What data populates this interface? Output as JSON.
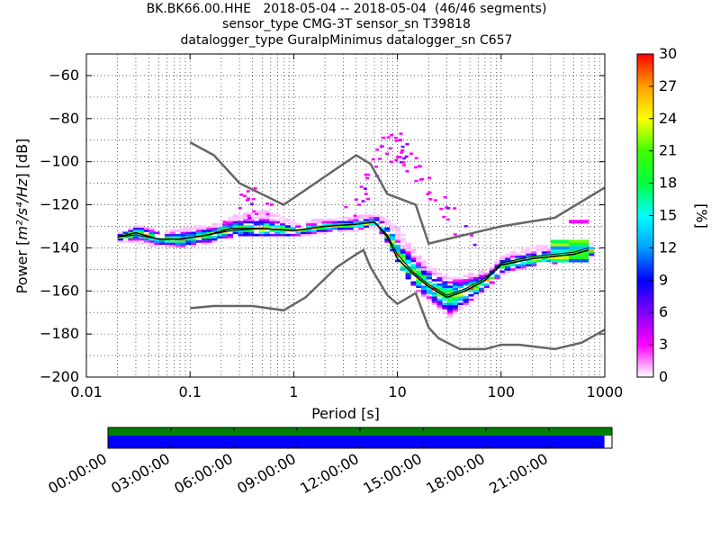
{
  "title_lines": [
    "BK.BK66.00.HHE   2018-05-04 -- 2018-05-04  (46/46 segments)",
    "sensor_type CMG-3T sensor_sn T39818",
    "datalogger_type GuralpMinimus datalogger_sn C657"
  ],
  "chart_data": {
    "type": "heatmap",
    "xlabel": "Period [s]",
    "ylabel": "Power [m²/s⁴/Hz] [dB]",
    "ylabel_parts": {
      "prefix": "Power [",
      "expr": "m²/s⁴/Hz",
      "suffix": "] [dB]"
    },
    "xscale": "log",
    "xlim": [
      0.01,
      1000
    ],
    "ylim": [
      -200,
      -50
    ],
    "x_tick_labels": [
      "0.01",
      "0.1",
      "1",
      "10",
      "100",
      "1000"
    ],
    "y_tick_labels": [
      "-60",
      "-80",
      "-100",
      "-120",
      "-140",
      "-160",
      "-180",
      "-200"
    ],
    "grid": "dotted",
    "colorbar": {
      "label": "[%]",
      "min": 0,
      "max": 30,
      "tick_labels": [
        "0",
        "3",
        "6",
        "9",
        "12",
        "15",
        "18",
        "21",
        "24",
        "27",
        "30"
      ],
      "colors": [
        "#ffffff",
        "#ff00ff",
        "#8000ff",
        "#0000ff",
        "#00a0ff",
        "#00ffff",
        "#00ff40",
        "#40ff00",
        "#ffff00",
        "#ffa000",
        "#ff0000"
      ]
    },
    "noise_model_high": [
      [
        0.1,
        -91
      ],
      [
        0.17,
        -97
      ],
      [
        0.3,
        -110
      ],
      [
        0.8,
        -120
      ],
      [
        4,
        -97
      ],
      [
        5.5,
        -101
      ],
      [
        8,
        -115
      ],
      [
        15,
        -120
      ],
      [
        20,
        -138
      ],
      [
        100,
        -130
      ],
      [
        330,
        -126
      ],
      [
        1000,
        -112
      ]
    ],
    "noise_model_low": [
      [
        0.1,
        -168
      ],
      [
        0.17,
        -167
      ],
      [
        0.4,
        -167
      ],
      [
        0.8,
        -169
      ],
      [
        1.3,
        -163
      ],
      [
        2.6,
        -149
      ],
      [
        4,
        -143
      ],
      [
        4.7,
        -141
      ],
      [
        5.5,
        -149
      ],
      [
        8,
        -162
      ],
      [
        10,
        -166
      ],
      [
        15,
        -161
      ],
      [
        20,
        -177
      ],
      [
        25,
        -182
      ],
      [
        40,
        -187
      ],
      [
        70,
        -187
      ],
      [
        100,
        -185
      ],
      [
        150,
        -185
      ],
      [
        330,
        -187
      ],
      [
        600,
        -184
      ],
      [
        1000,
        -178
      ]
    ],
    "mode_curve": [
      [
        0.02,
        -135
      ],
      [
        0.03,
        -133
      ],
      [
        0.05,
        -136
      ],
      [
        0.08,
        -136
      ],
      [
        0.15,
        -134
      ],
      [
        0.25,
        -131
      ],
      [
        0.5,
        -131
      ],
      [
        1,
        -132
      ],
      [
        2,
        -130
      ],
      [
        4,
        -129
      ],
      [
        6,
        -128
      ],
      [
        8,
        -135
      ],
      [
        10,
        -145
      ],
      [
        14,
        -152
      ],
      [
        20,
        -158
      ],
      [
        30,
        -163
      ],
      [
        45,
        -160
      ],
      [
        70,
        -155
      ],
      [
        100,
        -148
      ],
      [
        200,
        -145
      ],
      [
        500,
        -143
      ],
      [
        700,
        -141
      ]
    ],
    "mean_curve": [
      [
        0.02,
        -135
      ],
      [
        0.03,
        -134
      ],
      [
        0.05,
        -136
      ],
      [
        0.08,
        -136
      ],
      [
        0.15,
        -134
      ],
      [
        0.25,
        -132
      ],
      [
        0.5,
        -131
      ],
      [
        1,
        -132
      ],
      [
        2,
        -130
      ],
      [
        4,
        -129
      ],
      [
        6,
        -128
      ],
      [
        8,
        -134
      ],
      [
        10,
        -143
      ],
      [
        14,
        -151
      ],
      [
        20,
        -157
      ],
      [
        30,
        -162
      ],
      [
        45,
        -159
      ],
      [
        70,
        -154
      ],
      [
        100,
        -147
      ],
      [
        200,
        -144
      ],
      [
        500,
        -142
      ],
      [
        700,
        -140
      ]
    ],
    "psd_spread": [
      [
        0.02,
        -137,
        -133
      ],
      [
        0.03,
        -137,
        -130
      ],
      [
        0.05,
        -139,
        -133
      ],
      [
        0.08,
        -139,
        -132
      ],
      [
        0.15,
        -137,
        -130
      ],
      [
        0.25,
        -134,
        -126
      ],
      [
        0.5,
        -133,
        -123
      ],
      [
        1,
        -134,
        -129
      ],
      [
        2,
        -132,
        -127
      ],
      [
        4,
        -131,
        -126
      ],
      [
        6,
        -130,
        -125
      ],
      [
        8,
        -138,
        -128
      ],
      [
        10,
        -148,
        -133
      ],
      [
        14,
        -158,
        -143
      ],
      [
        20,
        -164,
        -150
      ],
      [
        30,
        -172,
        -155
      ],
      [
        45,
        -165,
        -153
      ],
      [
        70,
        -158,
        -151
      ],
      [
        100,
        -151,
        -144
      ],
      [
        200,
        -147,
        -140
      ],
      [
        500,
        -145,
        -138
      ],
      [
        700,
        -144,
        -138
      ]
    ],
    "outlier_band": [
      [
        3,
        -127
      ],
      [
        5,
        -110
      ],
      [
        7,
        -95
      ],
      [
        10,
        -92
      ],
      [
        12,
        -98
      ],
      [
        20,
        -112
      ],
      [
        35,
        -127
      ],
      [
        60,
        -143
      ]
    ],
    "outlier_band_early": [
      [
        0.2,
        -126
      ],
      [
        0.3,
        -121
      ],
      [
        0.4,
        -118
      ],
      [
        0.6,
        -124
      ]
    ]
  },
  "timeline": {
    "tick_labels": [
      "00:00:00",
      "03:00:00",
      "06:00:00",
      "09:00:00",
      "12:00:00",
      "15:00:00",
      "18:00:00",
      "21:00:00"
    ],
    "top_bar_color": "#008000",
    "bottom_bar_color": "#0000ff",
    "bottom_bar_fraction": 0.985
  }
}
